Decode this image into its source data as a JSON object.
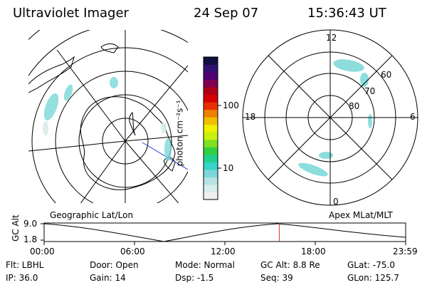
{
  "header": {
    "instrument": "Ultraviolet Imager",
    "date": "24 Sep 07",
    "time": "15:36:43 UT"
  },
  "colorbar": {
    "unit_label": "photon cm⁻²s⁻¹",
    "ticks": [
      "100",
      "10"
    ],
    "colors": [
      "#f0f0f0",
      "#d8ecec",
      "#b6e2e2",
      "#7ad8d8",
      "#37d4c8",
      "#20d090",
      "#30d040",
      "#80e020",
      "#c8f010",
      "#f0f000",
      "#f0c000",
      "#f08000",
      "#e83000",
      "#d80000",
      "#b00018",
      "#800050",
      "#500070",
      "#301070",
      "#101040"
    ]
  },
  "maps": {
    "left_label": "Geographic Lat/Lon",
    "right_label": "Apex MLat/MLT",
    "right_hours": {
      "top": "12",
      "bottom": "0",
      "left": "18",
      "right": "6"
    },
    "right_lats": [
      "60",
      "70",
      "80"
    ]
  },
  "timeline": {
    "ylabel": "GC Alt",
    "yticks": [
      "9.0",
      "1.8"
    ],
    "xticks": [
      "00:00",
      "06:00",
      "12:00",
      "18:00",
      "23:59"
    ],
    "current_hour": 15.61
  },
  "status": {
    "flt": "Flt: LBHL",
    "ip": "IP: 36.0",
    "door": "Door: Open",
    "gain": "Gain: 14",
    "mode": "Mode: Normal",
    "dsp": "Dsp:   -1.5",
    "gc_alt": "GC Alt: 8.8 Re",
    "seq": "Seq: 39",
    "glat": "GLat: -75.0",
    "glon": "GLon: 125.7"
  }
}
